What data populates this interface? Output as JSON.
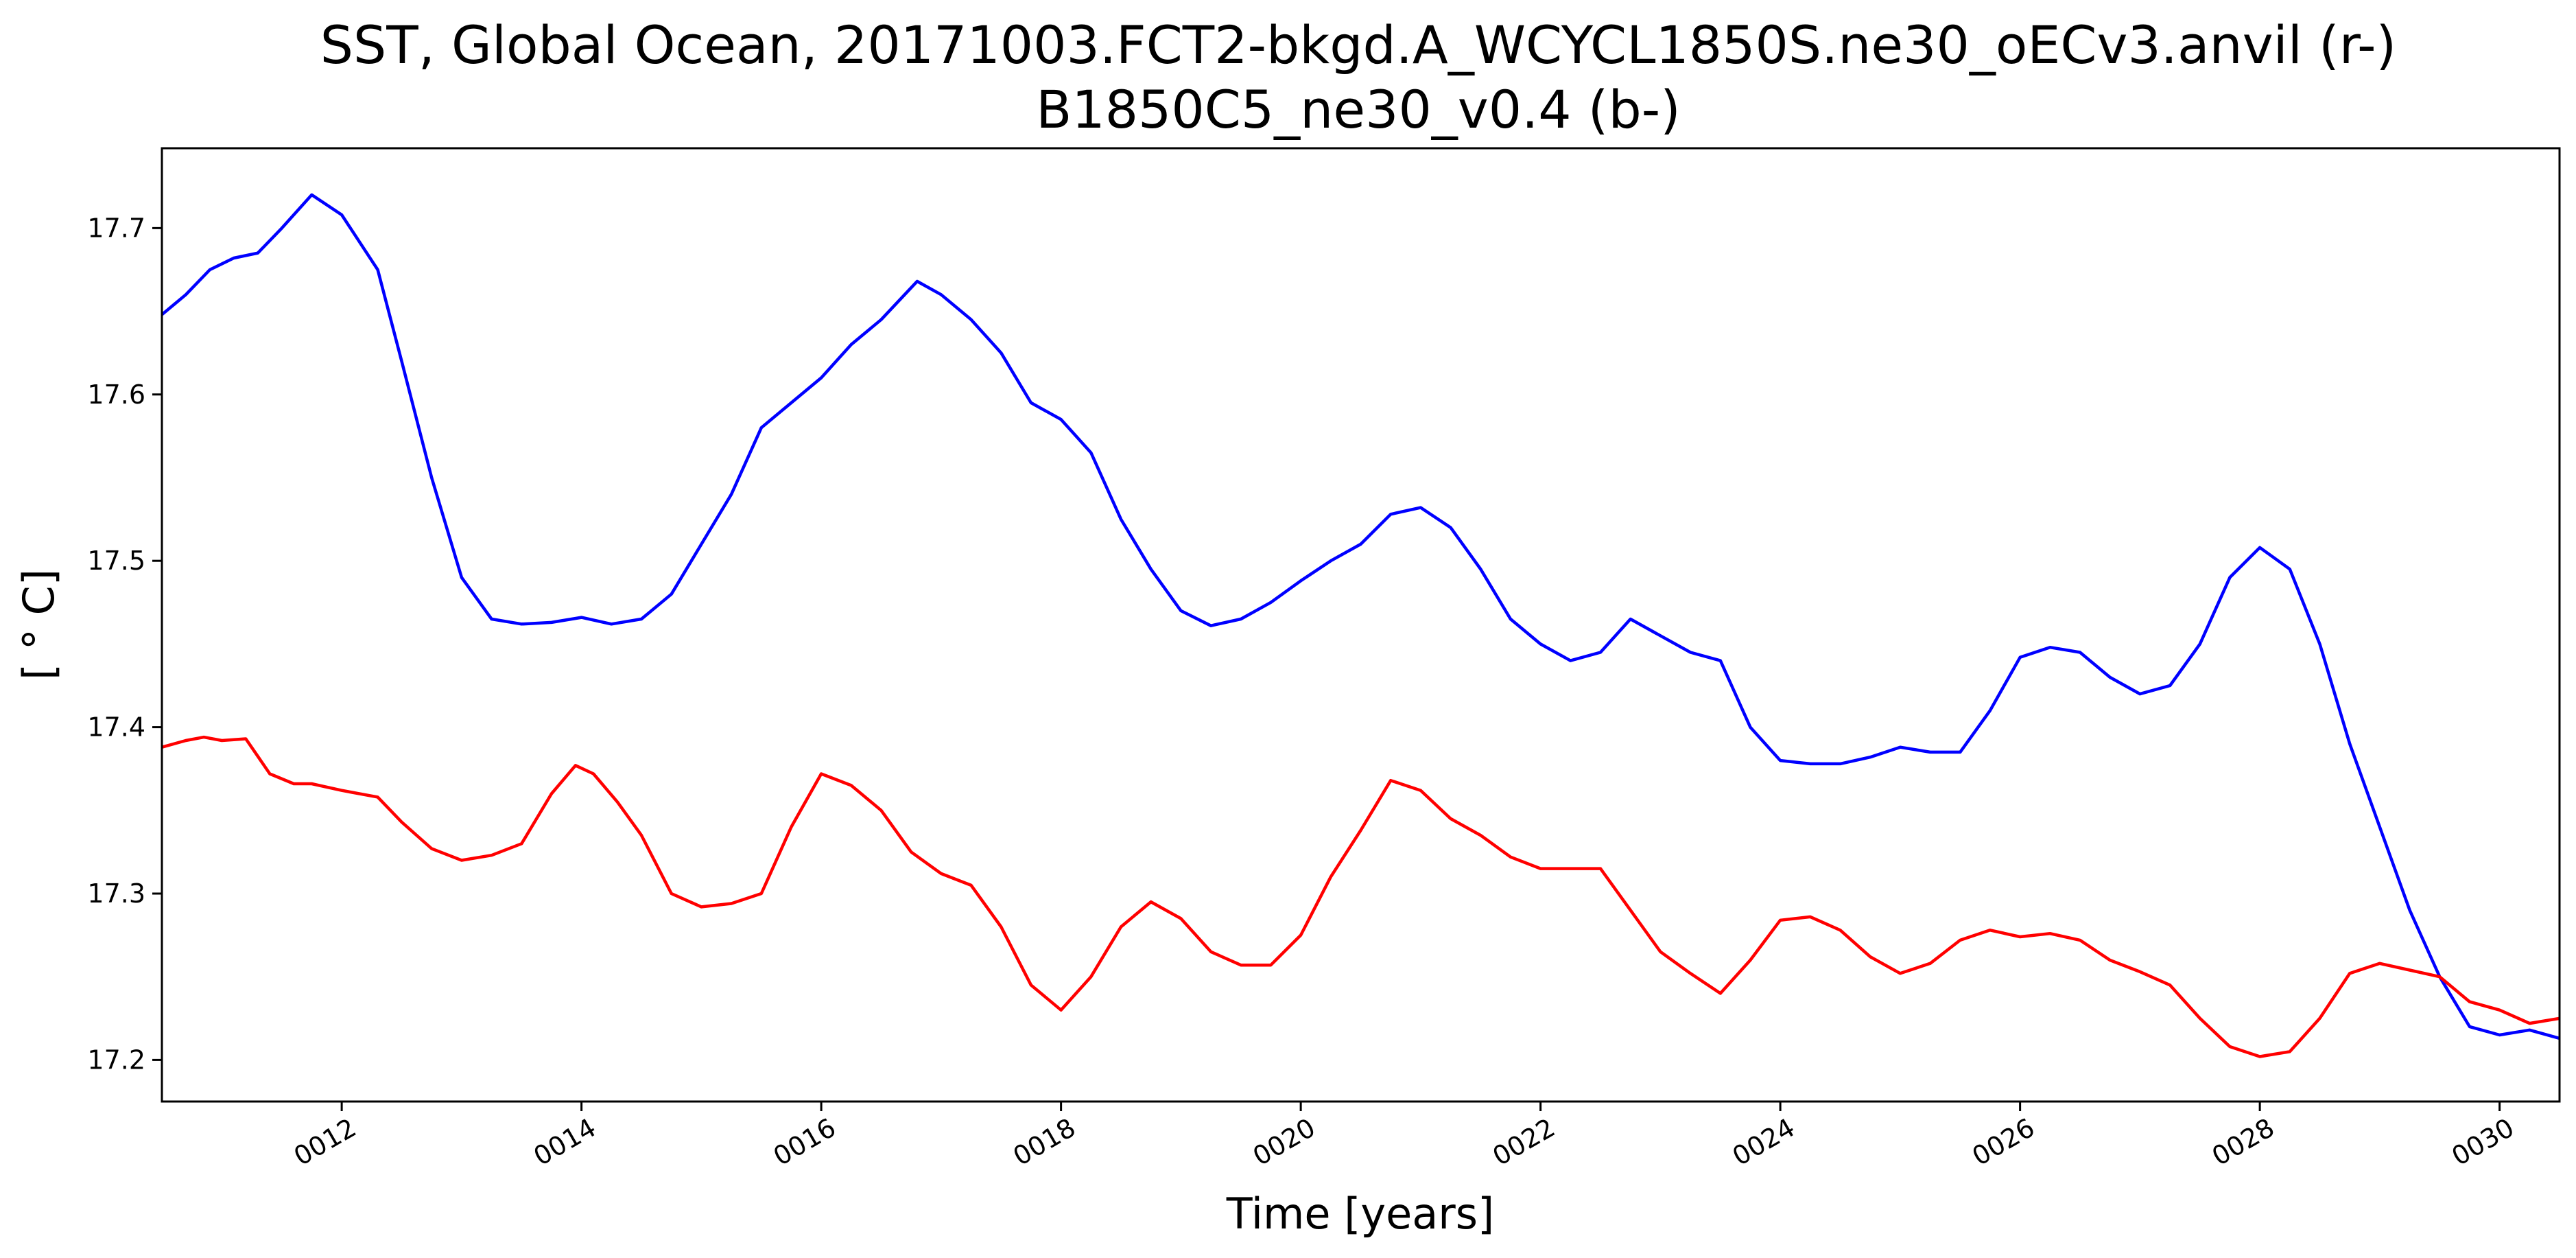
{
  "chart_data": {
    "type": "line",
    "title": "SST, Global Ocean, 20171003.FCT2-bkgd.A_WCYCL1850S.ne30_oECv3.anvil (r-)",
    "subtitle": "B1850C5_ne30_v0.4 (b-)",
    "xlabel": "Time [years]",
    "ylabel": "[ ° C]",
    "xlim": [
      10.5,
      30.5
    ],
    "ylim": [
      17.175,
      17.748
    ],
    "x_ticks": [
      12,
      14,
      16,
      18,
      20,
      22,
      24,
      26,
      28,
      30
    ],
    "x_tick_labels": [
      "0012",
      "0014",
      "0016",
      "0018",
      "0020",
      "0022",
      "0024",
      "0026",
      "0028",
      "0030"
    ],
    "y_ticks": [
      17.2,
      17.3,
      17.4,
      17.5,
      17.6,
      17.7
    ],
    "y_tick_labels": [
      "17.2",
      "17.3",
      "17.4",
      "17.5",
      "17.6",
      "17.7"
    ],
    "grid": false,
    "series": [
      {
        "color": "#0000ff",
        "x": [
          10.5,
          10.7,
          10.9,
          11.1,
          11.3,
          11.5,
          11.75,
          12.0,
          12.3,
          12.5,
          12.75,
          13.0,
          13.25,
          13.5,
          13.75,
          14.0,
          14.25,
          14.5,
          14.75,
          15.0,
          15.25,
          15.5,
          15.75,
          16.0,
          16.25,
          16.5,
          16.8,
          17.0,
          17.25,
          17.5,
          17.75,
          18.0,
          18.25,
          18.5,
          18.75,
          19.0,
          19.25,
          19.5,
          19.75,
          20.0,
          20.25,
          20.5,
          20.75,
          21.0,
          21.25,
          21.5,
          21.75,
          22.0,
          22.25,
          22.5,
          22.75,
          23.0,
          23.25,
          23.5,
          23.75,
          24.0,
          24.25,
          24.5,
          24.75,
          25.0,
          25.25,
          25.5,
          25.75,
          26.0,
          26.25,
          26.5,
          26.75,
          27.0,
          27.25,
          27.5,
          27.75,
          28.0,
          28.25,
          28.5,
          28.75,
          29.0,
          29.25,
          29.5,
          29.75,
          30.0,
          30.25,
          30.5
        ],
        "values": [
          17.648,
          17.66,
          17.675,
          17.682,
          17.685,
          17.7,
          17.72,
          17.708,
          17.675,
          17.62,
          17.55,
          17.49,
          17.465,
          17.462,
          17.463,
          17.466,
          17.462,
          17.465,
          17.48,
          17.51,
          17.54,
          17.58,
          17.595,
          17.61,
          17.63,
          17.645,
          17.668,
          17.66,
          17.645,
          17.625,
          17.595,
          17.585,
          17.565,
          17.525,
          17.495,
          17.47,
          17.461,
          17.465,
          17.475,
          17.488,
          17.5,
          17.51,
          17.528,
          17.532,
          17.52,
          17.495,
          17.465,
          17.45,
          17.44,
          17.445,
          17.465,
          17.455,
          17.445,
          17.44,
          17.4,
          17.38,
          17.378,
          17.378,
          17.382,
          17.388,
          17.385,
          17.385,
          17.41,
          17.442,
          17.448,
          17.445,
          17.43,
          17.42,
          17.425,
          17.45,
          17.49,
          17.508,
          17.495,
          17.45,
          17.39,
          17.34,
          17.29,
          17.25,
          17.22,
          17.215,
          17.218,
          17.213
        ]
      },
      {
        "color": "#ff0000",
        "x": [
          10.5,
          10.7,
          10.85,
          11.0,
          11.2,
          11.4,
          11.6,
          11.75,
          12.0,
          12.3,
          12.5,
          12.75,
          13.0,
          13.25,
          13.5,
          13.75,
          13.95,
          14.1,
          14.3,
          14.5,
          14.75,
          15.0,
          15.25,
          15.5,
          15.75,
          16.0,
          16.25,
          16.5,
          16.75,
          17.0,
          17.25,
          17.5,
          17.75,
          18.0,
          18.25,
          18.5,
          18.75,
          19.0,
          19.25,
          19.5,
          19.75,
          20.0,
          20.25,
          20.5,
          20.75,
          21.0,
          21.25,
          21.5,
          21.75,
          22.0,
          22.25,
          22.5,
          22.75,
          23.0,
          23.25,
          23.5,
          23.75,
          24.0,
          24.25,
          24.5,
          24.75,
          25.0,
          25.25,
          25.5,
          25.75,
          26.0,
          26.25,
          26.5,
          26.75,
          27.0,
          27.25,
          27.5,
          27.75,
          28.0,
          28.25,
          28.5,
          28.75,
          29.0,
          29.25,
          29.5,
          29.75,
          30.0,
          30.25,
          30.5
        ],
        "values": [
          17.388,
          17.392,
          17.394,
          17.392,
          17.393,
          17.372,
          17.366,
          17.366,
          17.362,
          17.358,
          17.343,
          17.327,
          17.32,
          17.323,
          17.33,
          17.36,
          17.377,
          17.372,
          17.355,
          17.335,
          17.3,
          17.292,
          17.294,
          17.3,
          17.34,
          17.372,
          17.365,
          17.35,
          17.325,
          17.312,
          17.305,
          17.28,
          17.245,
          17.23,
          17.25,
          17.28,
          17.295,
          17.285,
          17.265,
          17.257,
          17.257,
          17.275,
          17.31,
          17.338,
          17.368,
          17.362,
          17.345,
          17.335,
          17.322,
          17.315,
          17.315,
          17.315,
          17.29,
          17.265,
          17.252,
          17.24,
          17.26,
          17.284,
          17.286,
          17.278,
          17.262,
          17.252,
          17.258,
          17.272,
          17.278,
          17.274,
          17.276,
          17.272,
          17.26,
          17.253,
          17.245,
          17.225,
          17.208,
          17.202,
          17.205,
          17.225,
          17.252,
          17.258,
          17.254,
          17.25,
          17.235,
          17.23,
          17.222,
          17.225
        ]
      }
    ]
  }
}
